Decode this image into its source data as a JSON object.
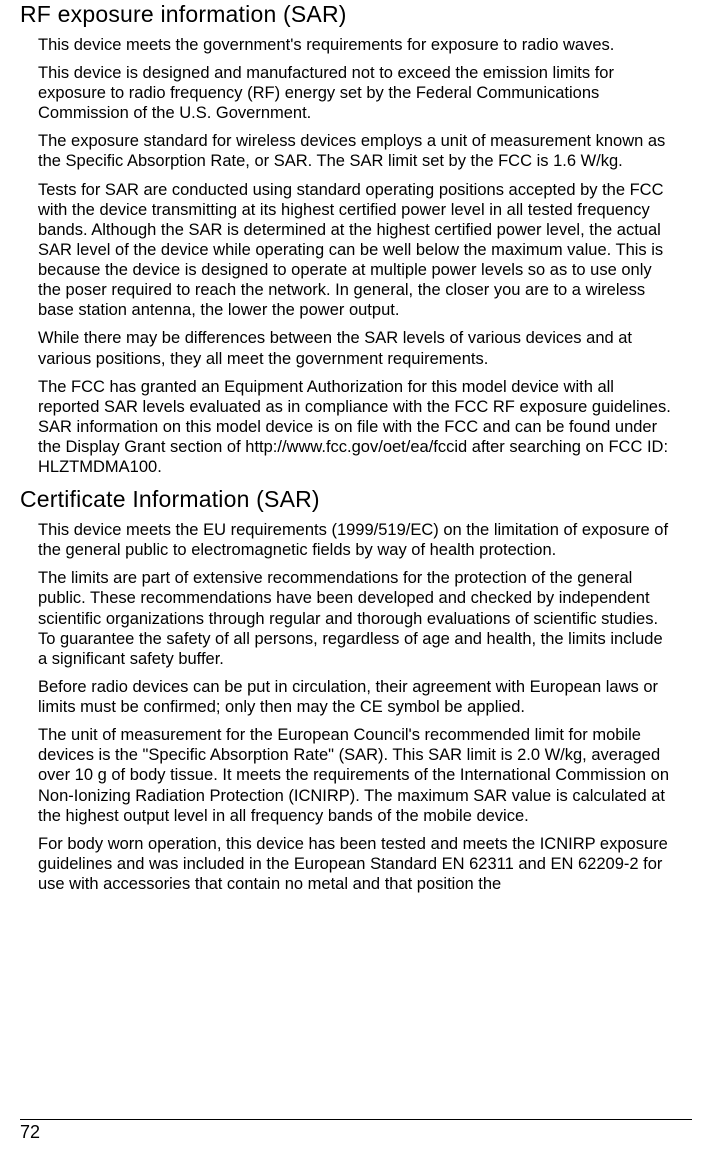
{
  "page": {
    "number": "72",
    "sections": [
      {
        "heading": "RF exposure information (SAR)",
        "paragraphs": [
          "This device meets the government's requirements for exposure to radio waves.",
          "This device is designed and manufactured not to exceed the emission limits for exposure to radio frequency (RF) energy set by the Federal Communications Commission of the U.S. Government.",
          "The exposure standard for wireless devices employs a unit of measurement known as the Specific Absorption Rate, or SAR. The SAR limit set by the FCC is 1.6 W/kg.",
          "Tests for SAR are conducted using standard operating positions accepted by the FCC with the device transmitting at its highest certified power level in all tested frequency bands. Although the SAR is determined at the highest certified power level, the actual SAR level of the device while operating can be well below the maximum value. This is because the device is designed to operate at multiple power levels so as to use only the poser required to reach the network. In general, the closer you are to a wireless base station antenna, the lower the power output.",
          "While there may be differences between the SAR levels of various devices and at various positions, they all meet the government requirements.",
          "The FCC has granted an Equipment Authorization for this model device with all reported SAR levels evaluated as in compliance with the FCC RF exposure guidelines. SAR information on this model device is on file with the FCC and can be found under the Display Grant section of http://www.fcc.gov/oet/ea/fccid after searching on FCC ID: HLZTMDMA100."
        ]
      },
      {
        "heading": "Certificate Information (SAR)",
        "paragraphs": [
          "This device meets the EU requirements (1999/519/EC) on the limitation of exposure of the general public to electromagnetic fields by way of health protection.",
          "The limits are part of extensive recommendations for the protection of the general public. These recommendations have been developed and checked by independent scientific organizations through regular and thorough evaluations of scientific studies. To guarantee the safety of all persons, regardless of age and health, the limits include a significant safety buffer.",
          "Before radio devices can be put in circulation, their agreement with European laws or limits must be confirmed; only then may the CE symbol be applied.",
          "The unit of measurement for the European Council's recommended limit for mobile devices is the \"Specific Absorption Rate\" (SAR). This SAR limit is 2.0 W/kg, averaged over 10 g of body tissue. It meets the requirements of the International Commission on Non-Ionizing Radiation Protection (ICNIRP). The maximum SAR value is calculated at the highest output level in all frequency bands of the mobile device.",
          "For body worn operation, this device has been tested and meets the ICNIRP exposure guidelines and was included in the European Standard EN 62311 and EN 62209-2 for use with accessories that contain no metal and that position the"
        ]
      }
    ]
  }
}
